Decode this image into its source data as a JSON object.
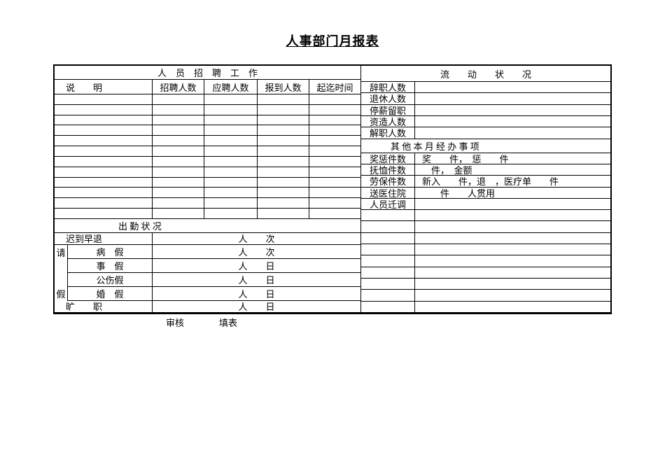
{
  "page_title": "人事部门月报表",
  "recruitment": {
    "section_header": "人　员　招　聘　工　作",
    "col_description": "说　　明",
    "col_recruited": "招聘人数",
    "col_applicants": "应聘人数",
    "col_reported": "报到人数",
    "col_period": "起迄时间",
    "empty_row_count": 12
  },
  "mobility": {
    "section_header": "流　　动　　状　　况",
    "rows": [
      {
        "label": "辞职人数",
        "value": ""
      },
      {
        "label": "退休人数",
        "value": ""
      },
      {
        "label": "停薪留职",
        "value": ""
      },
      {
        "label": "资造人数",
        "value": ""
      },
      {
        "label": "解职人数",
        "value": ""
      }
    ],
    "other_header": "其 他 本 月 经 办 事 项",
    "other_rows": [
      {
        "label": "奖惩件数",
        "value": "奖　　件，　惩　　件"
      },
      {
        "label": "抚恤件数",
        "value": "　件，　金额"
      },
      {
        "label": "劳保件数",
        "value": "新入　　件，退　，医疗单　　件"
      },
      {
        "label": "送医住院",
        "value": "　　件　　人贯用"
      },
      {
        "label": "人员迁调",
        "value": ""
      }
    ],
    "empty_row_count": 9
  },
  "attendance": {
    "section_header": "出 勤 状 况",
    "late_early_label": "迟到早退",
    "late_early_value": "人　　次",
    "leave_top_char": "请",
    "leave_bottom_char": "假",
    "leave_rows": [
      {
        "label": "病　假",
        "value": "人　　次"
      },
      {
        "label": "事　假",
        "value": "人　　日"
      },
      {
        "label": "公伤假",
        "value": "人　　日"
      },
      {
        "label": "婚　假",
        "value": "人　　日"
      }
    ],
    "absenteeism_label": "旷　　职",
    "absenteeism_value": "人　　日"
  },
  "footer": {
    "review_label": "审核",
    "fill_label": "填表"
  }
}
